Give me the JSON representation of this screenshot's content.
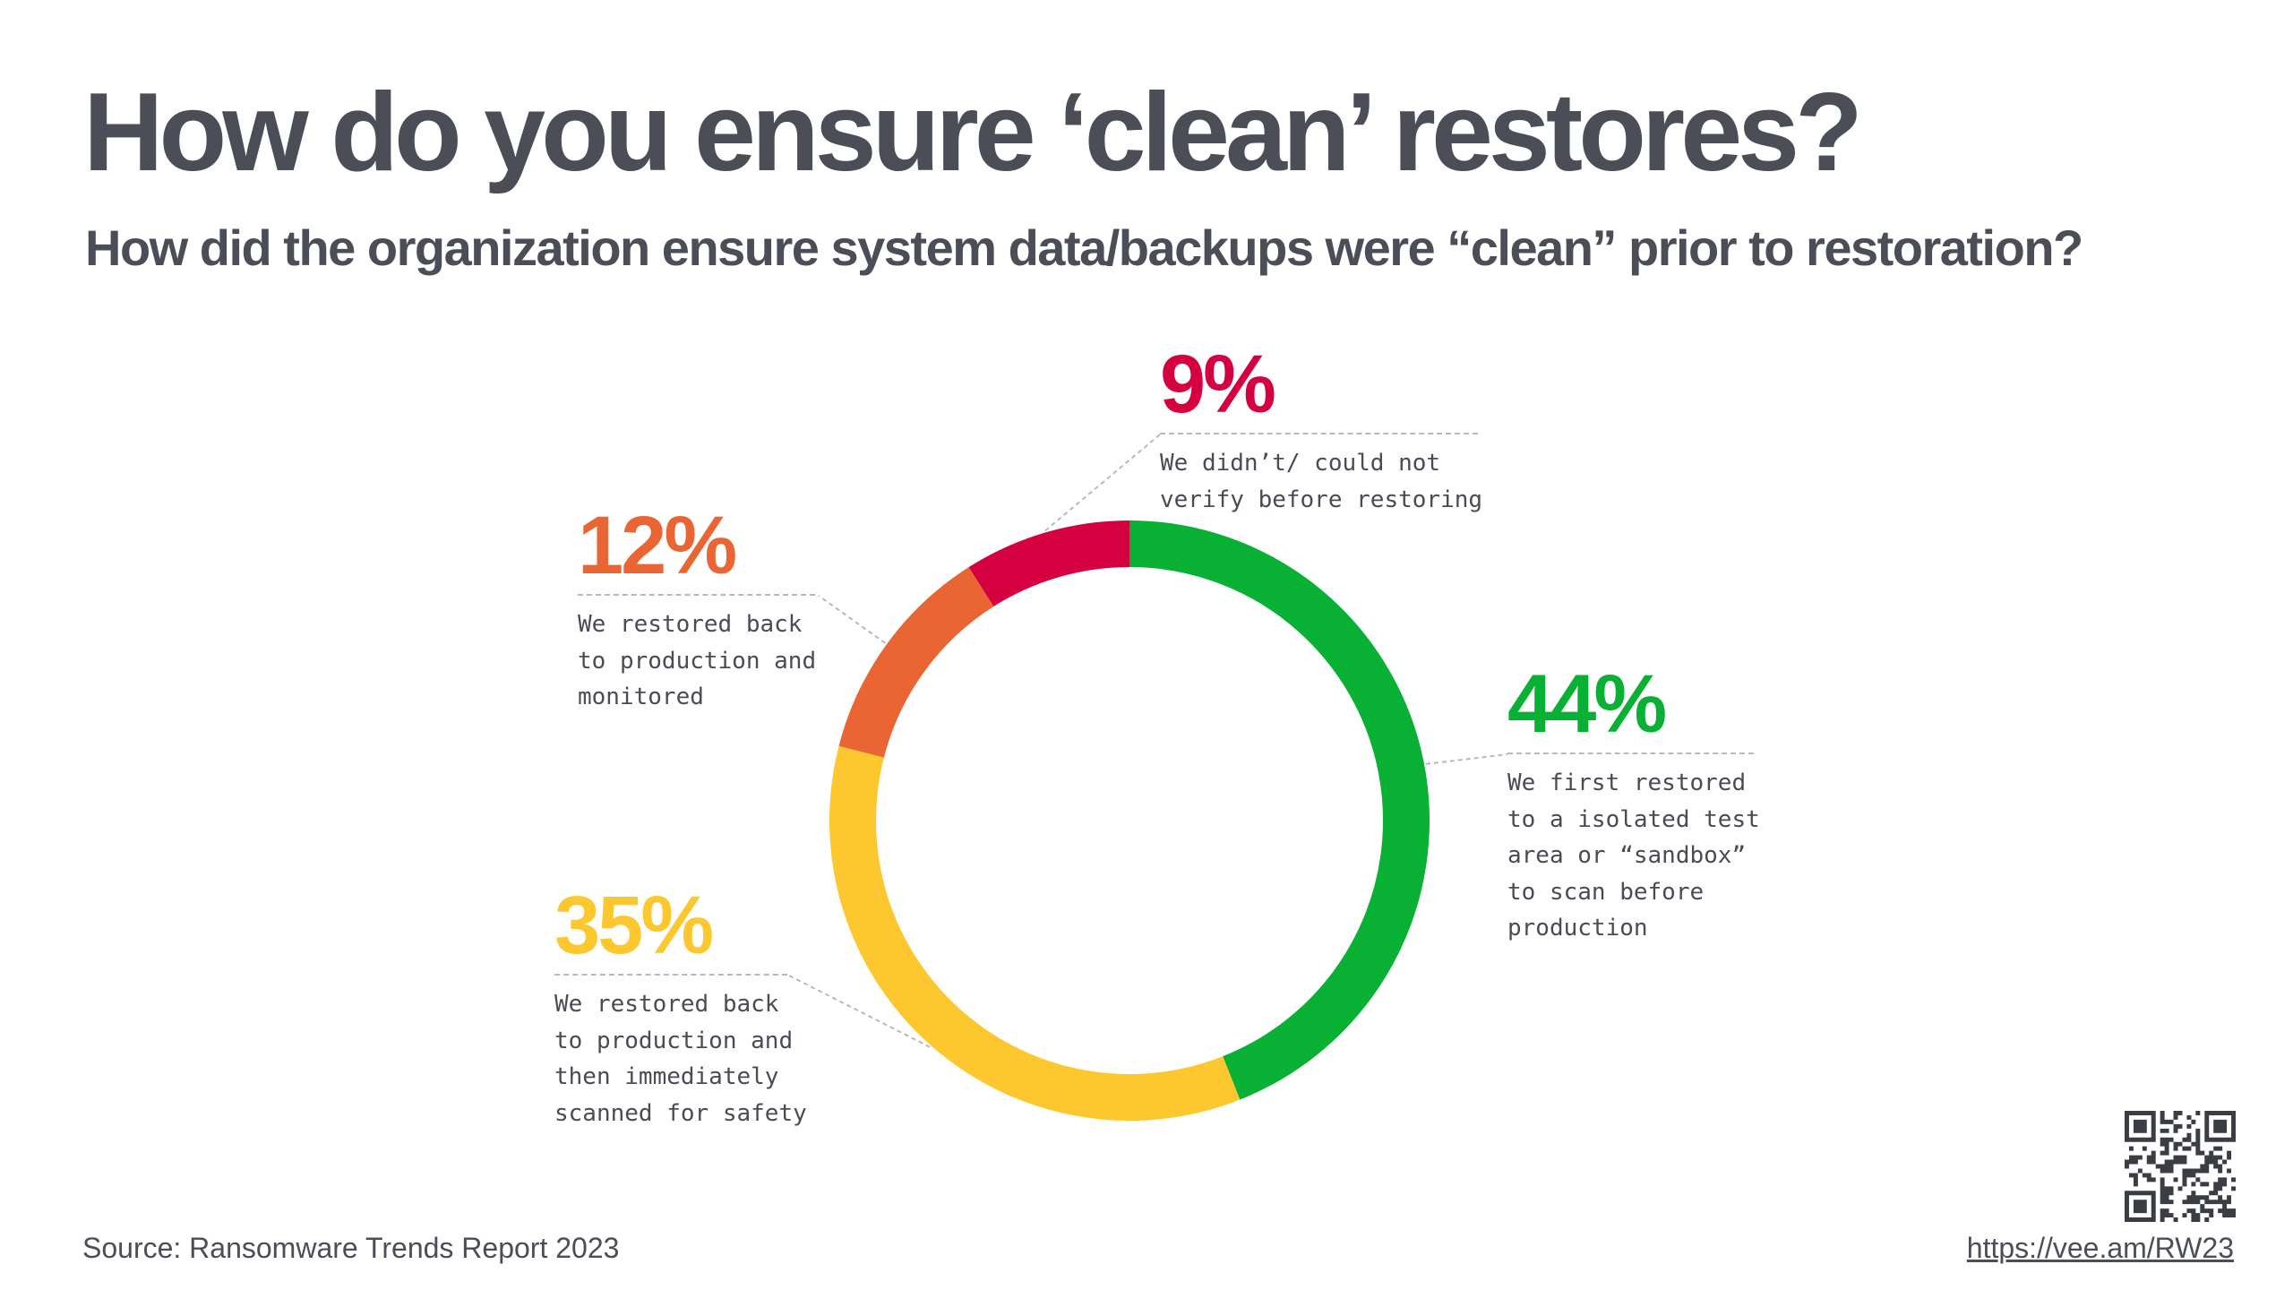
{
  "title": "How do you ensure ‘clean’ restores?",
  "subtitle": "How did the organization ensure system data/backups  were “clean” prior to restoration?",
  "chart_data": {
    "type": "pie",
    "style": "donut",
    "categories": [
      "We first restored to a isolated test area or “sandbox” to scan before production",
      "We restored back to production and then immediately scanned for safety",
      "We restored back to production and monitored",
      "We didn’t/ could not verify before restoring"
    ],
    "values": [
      44,
      35,
      12,
      9
    ],
    "labels": [
      "44%",
      "35%",
      "12%",
      "9%"
    ],
    "colors": [
      "#08b034",
      "#fdc82f",
      "#ea6534",
      "#d5003f"
    ],
    "descriptions": [
      "We first restored\nto a isolated test\narea or “sandbox”\nto scan before\nproduction",
      "We restored back\nto production and\nthen immediately\nscanned for safety",
      "We restored back\nto production and\nmonitored",
      "We didn’t/ could not\nverify before restoring"
    ]
  },
  "footer": {
    "source": "Source: Ransomware Trends Report 2023",
    "link": "https://vee.am/RW23"
  }
}
